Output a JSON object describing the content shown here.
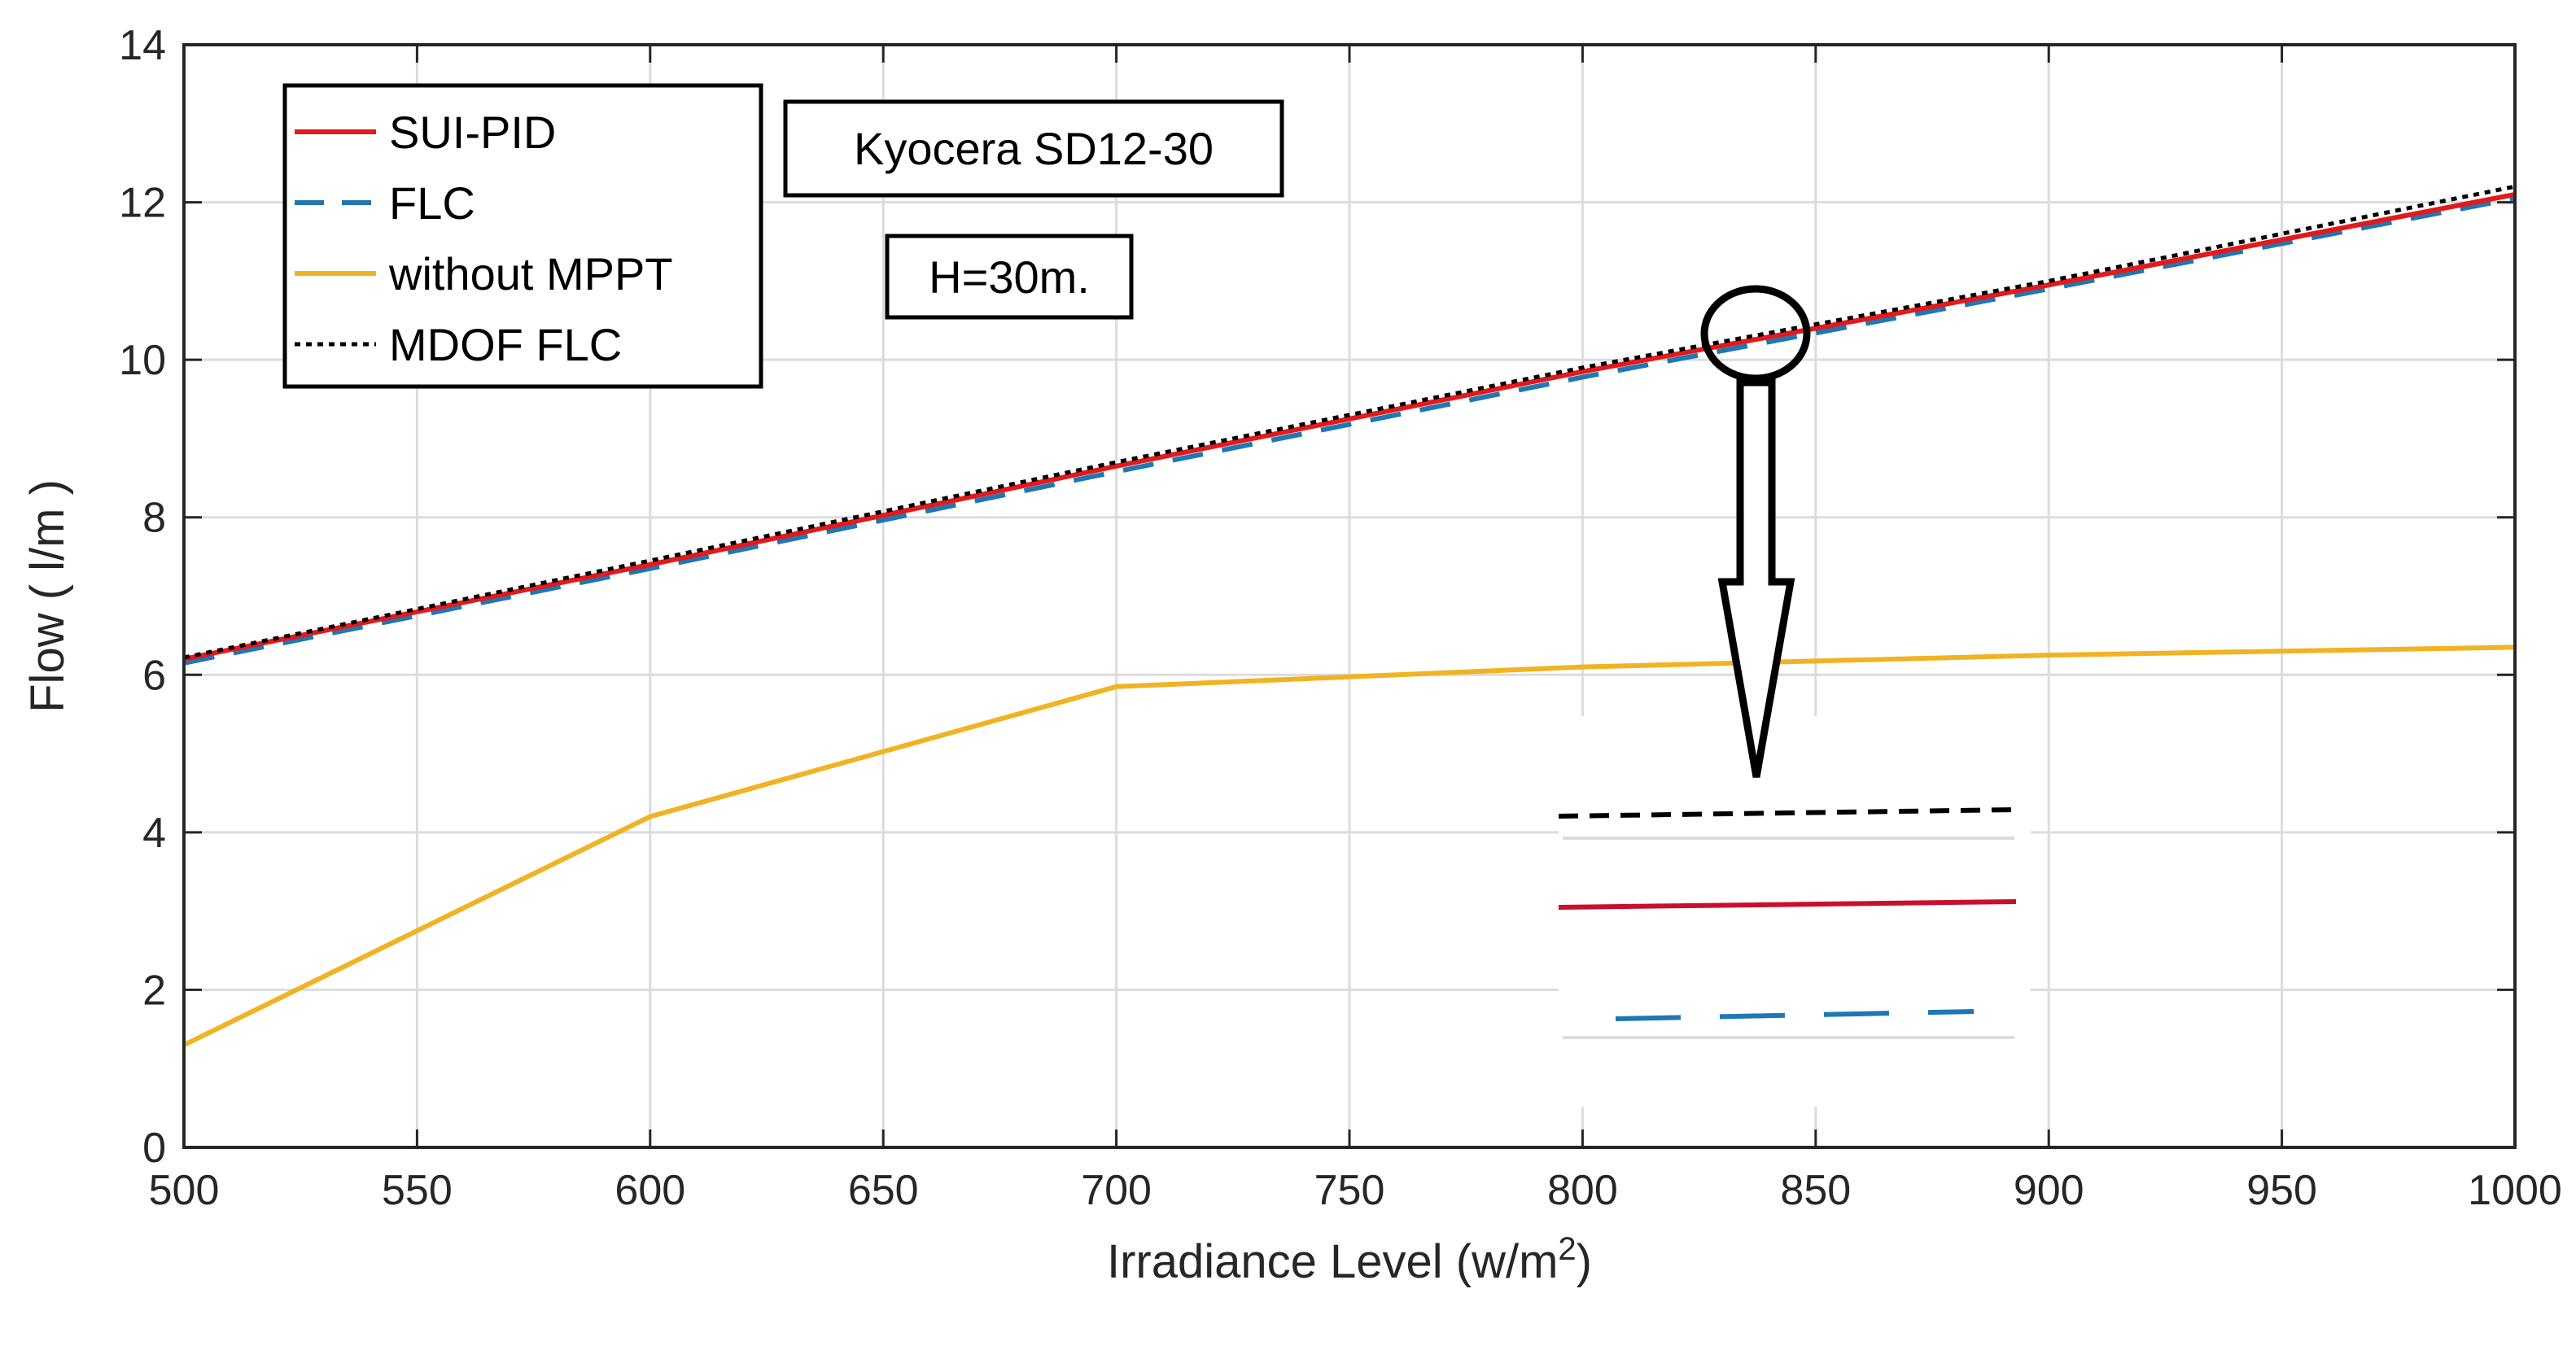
{
  "chart_data": {
    "type": "line",
    "title": "",
    "xlabel": "Irradiance Level (w/m",
    "xlabel_sup": "2",
    "xlabel_close": ")",
    "ylabel": "Flow ( l/m )",
    "xlim": [
      500,
      1000
    ],
    "ylim": [
      0,
      14
    ],
    "xticks": [
      500,
      550,
      600,
      650,
      700,
      750,
      800,
      850,
      900,
      950,
      1000
    ],
    "yticks": [
      0,
      2,
      4,
      6,
      8,
      10,
      12,
      14
    ],
    "grid": true,
    "legend_position": "top-left",
    "x": [
      500,
      600,
      700,
      800,
      900,
      1000
    ],
    "series": [
      {
        "name": "SUI-PID",
        "color": "#e31a1c",
        "style": "solid",
        "values": [
          6.2,
          7.4,
          8.65,
          9.85,
          10.95,
          12.1
        ]
      },
      {
        "name": "FLC",
        "color": "#1f77b4",
        "style": "dashed",
        "values": [
          6.15,
          7.35,
          8.58,
          9.78,
          10.9,
          12.05
        ]
      },
      {
        "name": "without MPPT",
        "color": "#f0b323",
        "style": "solid",
        "values": [
          1.3,
          4.2,
          5.85,
          6.1,
          6.25,
          6.35
        ]
      },
      {
        "name": "MDOF FLC",
        "color": "#000000",
        "style": "dotted",
        "values": [
          6.22,
          7.45,
          8.7,
          9.9,
          11.0,
          12.2
        ]
      }
    ],
    "annotations": [
      "Kyocera SD12-30",
      "H=30m."
    ]
  }
}
